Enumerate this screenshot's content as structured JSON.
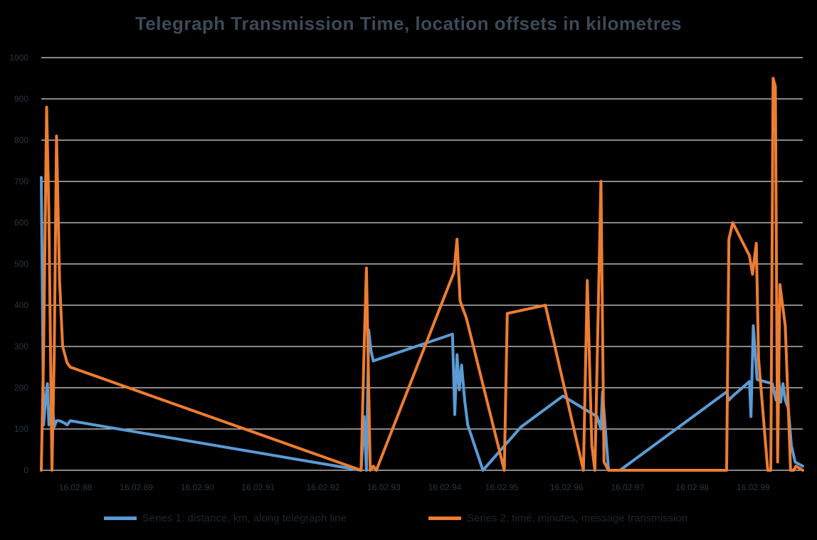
{
  "title": "Telegraph Transmission Time, location offsets in kilometres",
  "colors": {
    "background": "#000000",
    "grid": "#d9d9d9",
    "series1": "#5b9bd5",
    "series2": "#ed7d31",
    "title": "#3b4a57",
    "ticks": "#2a3540"
  },
  "chart_data": {
    "type": "line",
    "title": "Telegraph Transmission Time, location offsets in kilometres",
    "xlabel": "",
    "ylabel": "",
    "ylim": [
      0,
      1000
    ],
    "yticks": [
      0,
      100,
      200,
      300,
      400,
      500,
      600,
      700,
      800,
      900,
      1000
    ],
    "ytick_labels": [
      "0",
      "100",
      "200",
      "300",
      "400",
      "500",
      "600",
      "700",
      "800",
      "900",
      "1000"
    ],
    "xlim": [
      0,
      1000
    ],
    "xtick_positions": [
      15,
      95,
      175,
      255,
      340,
      420,
      500,
      575,
      660,
      740,
      825,
      905
    ],
    "xtick_labels": [
      "16.02.88",
      "16.02.89",
      "16.02.90",
      "16.02.91",
      "16.02.92",
      "16.02.93",
      "16.02.94",
      "16.02.95",
      "16.02.96",
      "16.02.97",
      "16.02.98",
      "16.02.99"
    ],
    "grid": true,
    "legend_position": "bottom",
    "series": [
      {
        "name": "Series 1: distance, km, along telegraph line",
        "color": "#5b9bd5",
        "x": [
          0,
          3,
          6,
          8,
          10,
          14,
          17,
          20,
          24,
          30,
          34,
          38,
          420,
          424,
          427,
          430,
          433,
          436,
          540,
          543,
          546,
          549,
          552,
          556,
          560,
          580,
          630,
          685,
          730,
          735,
          737,
          745,
          760,
          900,
          903,
          908,
          930,
          932,
          935,
          937,
          940,
          960,
          965,
          968,
          971,
          974,
          977,
          981,
          985,
          990,
          1000
        ],
        "y": [
          710,
          110,
          175,
          210,
          110,
          175,
          105,
          120,
          120,
          115,
          110,
          120,
          0,
          130,
          0,
          340,
          290,
          265,
          330,
          135,
          280,
          195,
          255,
          170,
          110,
          0,
          105,
          180,
          130,
          100,
          190,
          0,
          0,
          190,
          170,
          180,
          215,
          130,
          350,
          300,
          220,
          210,
          170,
          230,
          165,
          210,
          170,
          150,
          60,
          20,
          10
        ]
      },
      {
        "name": "Series 2: time, minutes, message transmission",
        "color": "#ed7d31",
        "x": [
          0,
          3,
          7,
          10,
          14,
          17,
          20,
          24,
          28,
          34,
          38,
          420,
          424,
          427,
          432,
          436,
          440,
          542,
          546,
          550,
          554,
          558,
          608,
          612,
          662,
          712,
          717,
          723,
          727,
          735,
          739,
          745,
          750,
          900,
          903,
          908,
          930,
          934,
          939,
          942,
          954,
          958,
          961,
          964,
          967,
          970,
          977,
          984,
          988,
          991,
          1000
        ],
        "y": [
          0,
          280,
          880,
          620,
          0,
          280,
          810,
          460,
          300,
          260,
          250,
          0,
          300,
          490,
          0,
          10,
          0,
          480,
          560,
          410,
          390,
          370,
          0,
          380,
          400,
          0,
          460,
          60,
          0,
          700,
          20,
          0,
          0,
          0,
          560,
          600,
          520,
          475,
          550,
          270,
          0,
          0,
          950,
          930,
          20,
          450,
          350,
          0,
          0,
          10,
          0
        ]
      }
    ]
  }
}
